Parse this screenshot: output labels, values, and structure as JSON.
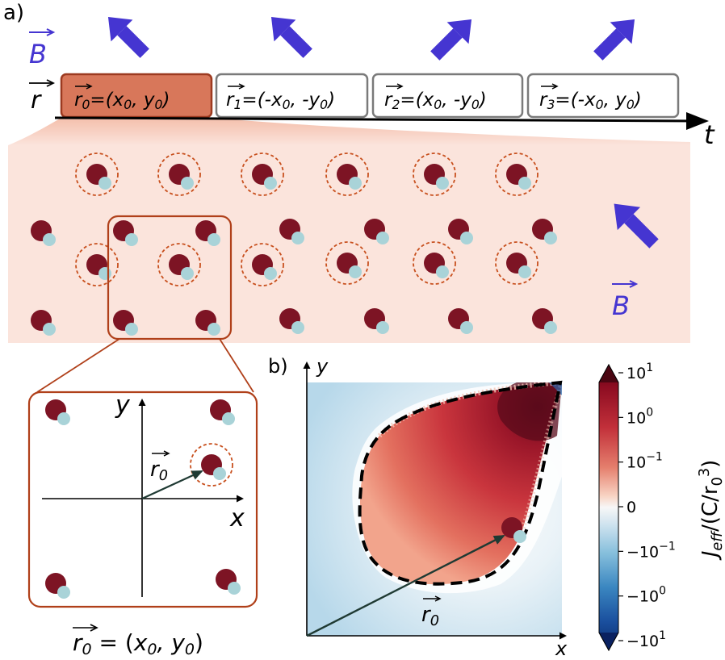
{
  "panel_a": {
    "label": "a)",
    "b_label": "B",
    "r_label": "r",
    "t_label": "t",
    "boxes": [
      {
        "sub": "0",
        "coords": "=(x₀, y₀)",
        "eq": "=(",
        "x": "x",
        "comma": ", ",
        "y": "y",
        "close": ")",
        "xsign": "",
        "ysign": ""
      },
      {
        "sub": "1",
        "eq": "=(",
        "xsign": "-",
        "x": "x",
        "comma": ", ",
        "ysign": "-",
        "y": "y",
        "close": ")"
      },
      {
        "sub": "2",
        "eq": "=(",
        "xsign": "",
        "x": "x",
        "comma": ", ",
        "ysign": "-",
        "y": "y",
        "close": ")"
      },
      {
        "sub": "3",
        "eq": "=(",
        "xsign": "-",
        "x": "x",
        "comma": ", ",
        "ysign": "",
        "y": "y",
        "close": ")"
      }
    ],
    "arrow_directions": [
      "up-left",
      "up-left",
      "up-right",
      "up-right"
    ],
    "inset_axes": {
      "x": "x",
      "y": "y",
      "r0": "r",
      "sub": "0"
    },
    "inset_caption": {
      "r": "r",
      "sub": "0",
      "eq": " = (",
      "x": "x",
      "comma": ", ",
      "y": "y",
      "close": ")",
      "sub_x": "0",
      "sub_y": "0"
    }
  },
  "panel_b": {
    "label": "b)",
    "x_label": "x",
    "y_label": "y",
    "r0": "r",
    "sub": "0",
    "colorbar": {
      "ylabel_main": "J",
      "ylabel_sub": "eff",
      "ylabel_rest": "/(C/r",
      "ylabel_sub0": "0",
      "ylabel_sup": "3",
      "ylabel_close": ")",
      "ticks": [
        {
          "base": "10",
          "exp": "1"
        },
        {
          "base": "10",
          "exp": "0"
        },
        {
          "base": "10",
          "exp": "−1"
        },
        {
          "base": "0",
          "exp": ""
        },
        {
          "base": "−10",
          "exp": "−1"
        },
        {
          "base": "−10",
          "exp": "0"
        },
        {
          "base": "−10",
          "exp": "1"
        }
      ]
    }
  },
  "colors": {
    "field_arrow": "#4535d1",
    "box_fill": "#d8775a",
    "box_border": "#9c3a20",
    "lattice_bg": "#fbe4dc",
    "atom_dark": "#7d1424",
    "atom_light": "#a9d3d8",
    "dashed": "#c8501e"
  }
}
